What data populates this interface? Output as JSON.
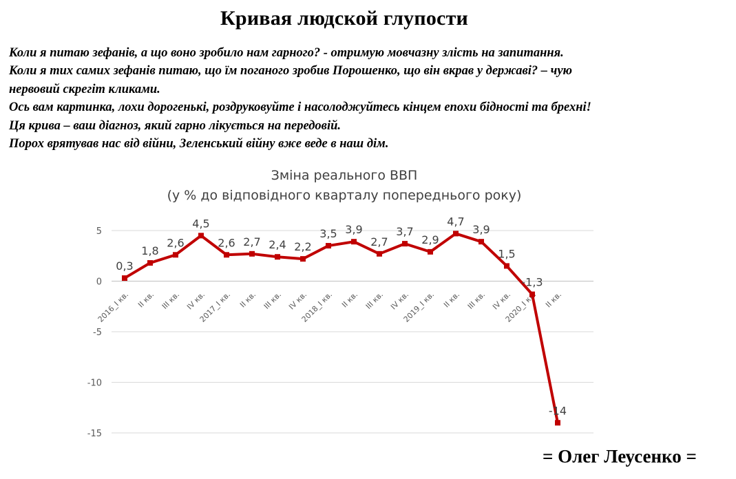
{
  "headline": "Кривая людской глупости",
  "paragraph_lines": [
    "Коли я питаю зефанів, а що воно зробило нам гарного? - отримую мовчазну злість на запитання.",
    "Коли я тих самих зефанів питаю, що їм поганого зробив Порошенко, що він вкрав у державі? – чую",
    "нервовий скрегіт кликами.",
    "Ось вам картинка, лохи дорогенькі, роздруковуйте і насолоджуйтесь кінцем епохи бідності та брехні!",
    "Ця крива – ваш діагноз, який гарно лікується на передовій.",
    "Порох врятував нас від війни, Зеленський війну вже веде в наш дім."
  ],
  "signature": "= Олег Леусенко =",
  "chart_data": {
    "type": "line",
    "title": "Зміна реального ВВП",
    "subtitle": "(у % до відповідного кварталу попереднього року)",
    "categories": [
      "2016_I кв.",
      "II кв.",
      "III кв.",
      "IV кв.",
      "2017_I кв.",
      "II кв.",
      "III кв.",
      "IV кв.",
      "2018_I кв.",
      "II кв.",
      "III кв.",
      "IV кв.",
      "2019_I кв.",
      "II кв.",
      "III кв.",
      "IV кв.",
      "2020_I кв.",
      "II кв."
    ],
    "values": [
      0.3,
      1.8,
      2.6,
      4.5,
      2.6,
      2.7,
      2.4,
      2.2,
      3.5,
      3.9,
      2.7,
      3.7,
      2.9,
      4.7,
      3.9,
      1.5,
      -1.3,
      -14
    ],
    "data_labels": [
      "0,3",
      "1,8",
      "2,6",
      "4,5",
      "2,6",
      "2,7",
      "2,4",
      "2,2",
      "3,5",
      "3,9",
      "2,7",
      "3,7",
      "2,9",
      "4,7",
      "3,9",
      "1,5",
      "-1,3",
      "-14"
    ],
    "y_ticks": [
      5,
      0,
      -5,
      -10,
      -15
    ],
    "ylim": [
      -15,
      5
    ],
    "xlabel": "",
    "ylabel": "",
    "grid": "horizontal",
    "legend": "none",
    "line_color": "#c00000",
    "grid_color": "#d9d9d9"
  }
}
